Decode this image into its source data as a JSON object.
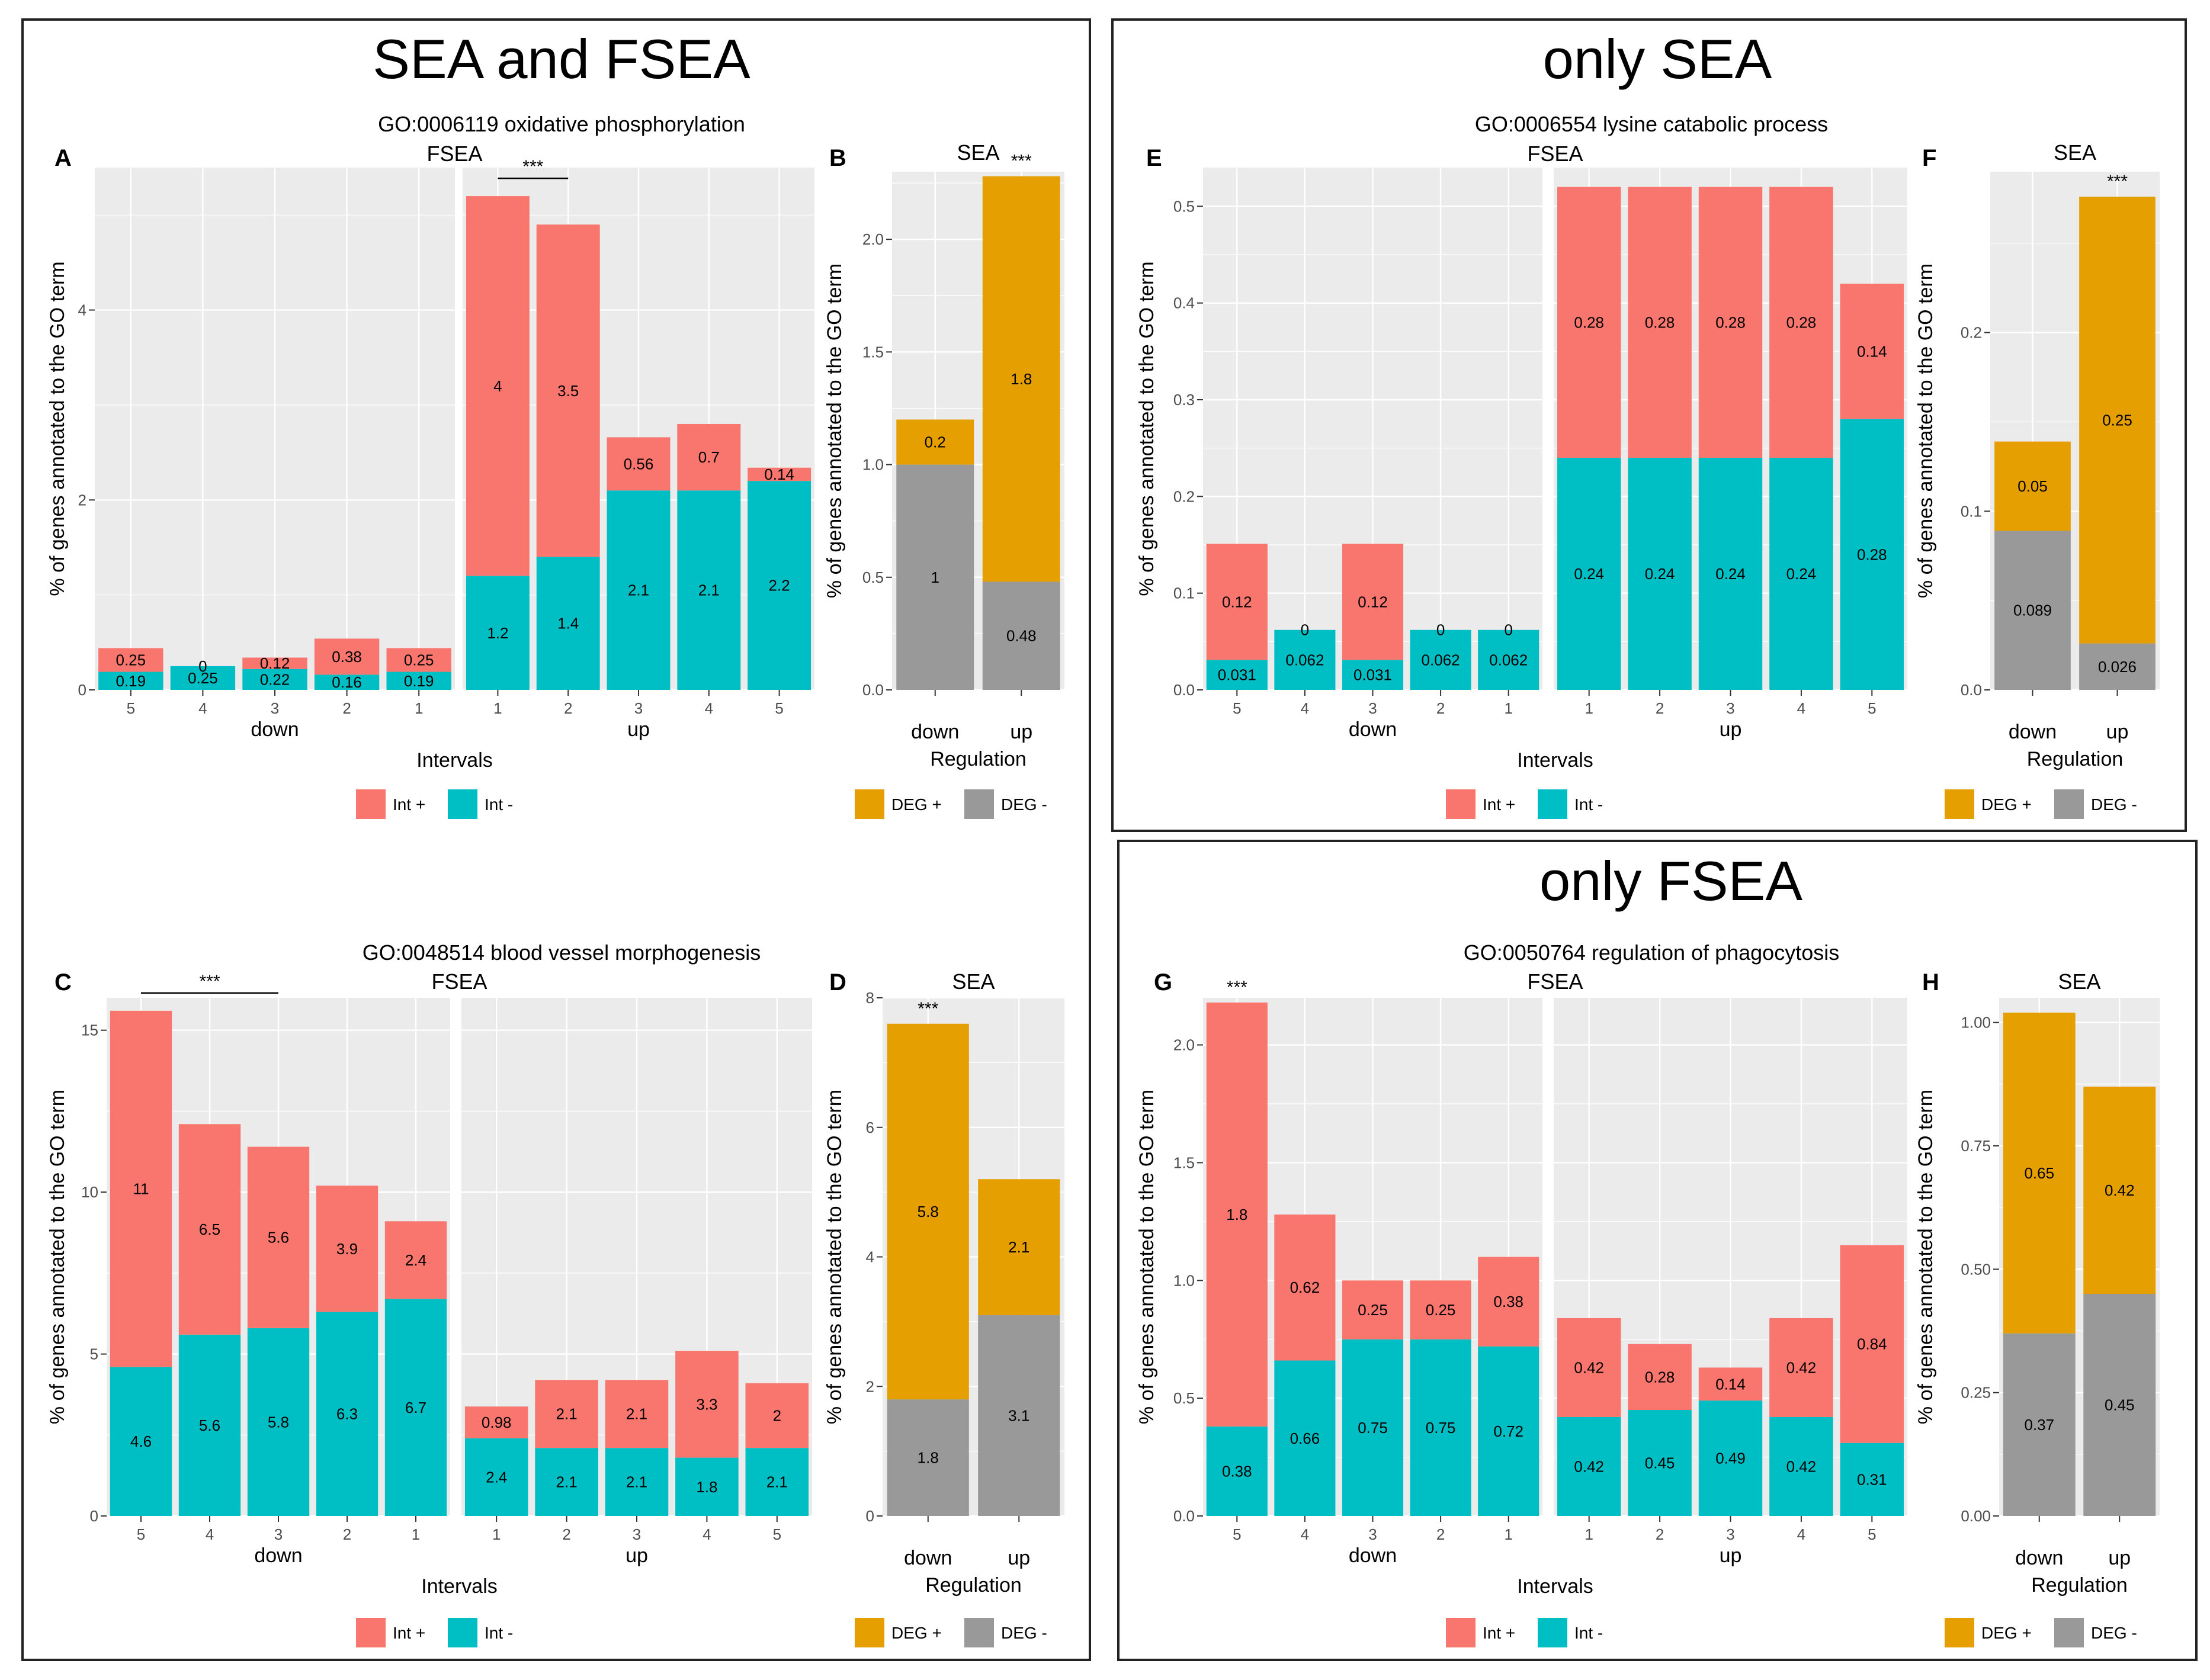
{
  "colors": {
    "int_plus": "#F8766D",
    "int_minus": "#00BFC4",
    "deg_plus": "#E69F00",
    "deg_minus": "#999999",
    "panel_bg": "#EBEBEB",
    "grid": "#FFFFFF"
  },
  "sections": [
    {
      "title": "SEA and FSEA"
    },
    {
      "title": "only SEA"
    },
    {
      "title": "only FSEA"
    }
  ],
  "chart_data": [
    {
      "id": "A",
      "type": "bar",
      "stacked": true,
      "go_title": "GO:0006119 oxidative phosphorylation",
      "subtitle": "FSEA",
      "ylabel": "% of genes annotated to the GO term",
      "xlabel": "Intervals",
      "ylim": [
        0,
        5.5
      ],
      "yticks": [
        0,
        2,
        4
      ],
      "ytick_labels": [
        "0",
        "2",
        "4"
      ],
      "facets": [
        {
          "name": "down",
          "categories": [
            "5",
            "4",
            "3",
            "2",
            "1"
          ]
        },
        {
          "name": "up",
          "categories": [
            "1",
            "2",
            "3",
            "4",
            "5"
          ]
        }
      ],
      "series": [
        {
          "name": "Int +",
          "values": [
            [
              0.25,
              0,
              0.12,
              0.38,
              0.25
            ],
            [
              4,
              3.5,
              0.56,
              0.7,
              0.14
            ]
          ],
          "labels": [
            [
              "0.25",
              "0",
              "0.12",
              "0.38",
              "0.25"
            ],
            [
              "4",
              "3.5",
              "0.56",
              "0.7",
              "0.14"
            ]
          ]
        },
        {
          "name": "Int -",
          "values": [
            [
              0.19,
              0.25,
              0.22,
              0.16,
              0.19
            ],
            [
              1.2,
              1.4,
              2.1,
              2.1,
              2.2
            ]
          ],
          "labels": [
            [
              "0.19",
              "0.25",
              "0.22",
              "0.16",
              "0.19"
            ],
            [
              "1.2",
              "1.4",
              "2.1",
              "2.1",
              "2.2"
            ]
          ]
        }
      ],
      "significance": {
        "label": "***",
        "facet": 1,
        "from": 0,
        "to": 1
      },
      "legend": [
        "Int +",
        "Int -"
      ]
    },
    {
      "id": "B",
      "type": "bar",
      "stacked": true,
      "subtitle": "SEA",
      "ylabel": "% of genes annotated to the GO term",
      "xlabel": "Regulation",
      "ylim": [
        0,
        2.3
      ],
      "yticks": [
        0,
        0.5,
        1,
        1.5,
        2
      ],
      "ytick_labels": [
        "0.0",
        "0.5",
        "1.0",
        "1.5",
        "2.0"
      ],
      "categories": [
        "down",
        "up"
      ],
      "series": [
        {
          "name": "DEG +",
          "values": [
            0.2,
            1.8
          ],
          "labels": [
            "0.2",
            "1.8"
          ]
        },
        {
          "name": "DEG -",
          "values": [
            1,
            0.48
          ],
          "labels": [
            "1",
            "0.48"
          ]
        }
      ],
      "significance": {
        "label": "***",
        "bar": 1
      },
      "legend": [
        "DEG +",
        "DEG -"
      ]
    },
    {
      "id": "C",
      "type": "bar",
      "stacked": true,
      "go_title": "GO:0048514 blood vessel morphogenesis",
      "subtitle": "FSEA",
      "ylabel": "% of genes annotated to the GO term",
      "xlabel": "Intervals",
      "ylim": [
        0,
        16
      ],
      "yticks": [
        0,
        5,
        10,
        15
      ],
      "ytick_labels": [
        "0",
        "5",
        "10",
        "15"
      ],
      "facets": [
        {
          "name": "down",
          "categories": [
            "5",
            "4",
            "3",
            "2",
            "1"
          ]
        },
        {
          "name": "up",
          "categories": [
            "1",
            "2",
            "3",
            "4",
            "5"
          ]
        }
      ],
      "series": [
        {
          "name": "Int +",
          "values": [
            [
              11,
              6.5,
              5.6,
              3.9,
              2.4
            ],
            [
              0.98,
              2.1,
              2.1,
              3.3,
              2
            ]
          ],
          "labels": [
            [
              "11",
              "6.5",
              "5.6",
              "3.9",
              "2.4"
            ],
            [
              "0.98",
              "2.1",
              "2.1",
              "3.3",
              "2"
            ]
          ]
        },
        {
          "name": "Int -",
          "values": [
            [
              4.6,
              5.6,
              5.8,
              6.3,
              6.7
            ],
            [
              2.4,
              2.1,
              2.1,
              1.8,
              2.1
            ]
          ],
          "labels": [
            [
              "4.6",
              "5.6",
              "5.8",
              "6.3",
              "6.7"
            ],
            [
              "2.4",
              "2.1",
              "2.1",
              "1.8",
              "2.1"
            ]
          ]
        }
      ],
      "significance": {
        "label": "***",
        "facet": 0,
        "from": 0,
        "to": 2
      },
      "legend": [
        "Int +",
        "Int -"
      ]
    },
    {
      "id": "D",
      "type": "bar",
      "stacked": true,
      "subtitle": "SEA",
      "ylabel": "% of genes annotated to the GO term",
      "xlabel": "Regulation",
      "ylim": [
        0,
        8
      ],
      "yticks": [
        0,
        2,
        4,
        6,
        8
      ],
      "ytick_labels": [
        "0",
        "2",
        "4",
        "6",
        "8"
      ],
      "categories": [
        "down",
        "up"
      ],
      "series": [
        {
          "name": "DEG +",
          "values": [
            5.8,
            2.1
          ],
          "labels": [
            "5.8",
            "2.1"
          ]
        },
        {
          "name": "DEG -",
          "values": [
            1.8,
            3.1
          ],
          "labels": [
            "1.8",
            "3.1"
          ]
        }
      ],
      "significance": {
        "label": "***",
        "bar": 0
      },
      "legend": [
        "DEG +",
        "DEG -"
      ]
    },
    {
      "id": "E",
      "type": "bar",
      "stacked": true,
      "go_title": "GO:0006554 lysine catabolic process",
      "subtitle": "FSEA",
      "ylabel": "% of genes annotated to the GO term",
      "xlabel": "Intervals",
      "ylim": [
        0,
        0.54
      ],
      "yticks": [
        0,
        0.1,
        0.2,
        0.3,
        0.4,
        0.5
      ],
      "ytick_labels": [
        "0.0",
        "0.1",
        "0.2",
        "0.3",
        "0.4",
        "0.5"
      ],
      "facets": [
        {
          "name": "down",
          "categories": [
            "5",
            "4",
            "3",
            "2",
            "1"
          ]
        },
        {
          "name": "up",
          "categories": [
            "1",
            "2",
            "3",
            "4",
            "5"
          ]
        }
      ],
      "series": [
        {
          "name": "Int +",
          "values": [
            [
              0.12,
              0,
              0.12,
              0,
              0
            ],
            [
              0.28,
              0.28,
              0.28,
              0.28,
              0.14
            ]
          ],
          "labels": [
            [
              "0.12",
              "0",
              "0.12",
              "0",
              "0"
            ],
            [
              "0.28",
              "0.28",
              "0.28",
              "0.28",
              "0.14"
            ]
          ]
        },
        {
          "name": "Int -",
          "values": [
            [
              0.031,
              0.062,
              0.031,
              0.062,
              0.062
            ],
            [
              0.24,
              0.24,
              0.24,
              0.24,
              0.28
            ]
          ],
          "labels": [
            [
              "0.031",
              "0.062",
              "0.031",
              "0.062",
              "0.062"
            ],
            [
              "0.24",
              "0.24",
              "0.24",
              "0.24",
              "0.28"
            ]
          ]
        }
      ],
      "legend": [
        "Int +",
        "Int -"
      ]
    },
    {
      "id": "F",
      "type": "bar",
      "stacked": true,
      "subtitle": "SEA",
      "ylabel": "% of genes annotated to the GO term",
      "xlabel": "Regulation",
      "ylim": [
        0,
        0.29
      ],
      "yticks": [
        0,
        0.1,
        0.2
      ],
      "ytick_labels": [
        "0.0",
        "0.1",
        "0.2"
      ],
      "categories": [
        "down",
        "up"
      ],
      "series": [
        {
          "name": "DEG +",
          "values": [
            0.05,
            0.25
          ],
          "labels": [
            "0.05",
            "0.25"
          ]
        },
        {
          "name": "DEG -",
          "values": [
            0.089,
            0.026
          ],
          "labels": [
            "0.089",
            "0.026"
          ]
        }
      ],
      "significance": {
        "label": "***",
        "bar": 1
      },
      "legend": [
        "DEG +",
        "DEG -"
      ]
    },
    {
      "id": "G",
      "type": "bar",
      "stacked": true,
      "go_title": "GO:0050764 regulation of phagocytosis",
      "subtitle": "FSEA",
      "ylabel": "% of genes annotated to the GO term",
      "xlabel": "Intervals",
      "ylim": [
        0,
        2.2
      ],
      "yticks": [
        0,
        0.5,
        1,
        1.5,
        2
      ],
      "ytick_labels": [
        "0.0",
        "0.5",
        "1.0",
        "1.5",
        "2.0"
      ],
      "facets": [
        {
          "name": "down",
          "categories": [
            "5",
            "4",
            "3",
            "2",
            "1"
          ]
        },
        {
          "name": "up",
          "categories": [
            "1",
            "2",
            "3",
            "4",
            "5"
          ]
        }
      ],
      "series": [
        {
          "name": "Int +",
          "values": [
            [
              1.8,
              0.62,
              0.25,
              0.25,
              0.38
            ],
            [
              0.42,
              0.28,
              0.14,
              0.42,
              0.84
            ]
          ],
          "labels": [
            [
              "1.8",
              "0.62",
              "0.25",
              "0.25",
              "0.38"
            ],
            [
              "0.42",
              "0.28",
              "0.14",
              "0.42",
              "0.84"
            ]
          ]
        },
        {
          "name": "Int -",
          "values": [
            [
              0.38,
              0.66,
              0.75,
              0.75,
              0.72
            ],
            [
              0.42,
              0.45,
              0.49,
              0.42,
              0.31
            ]
          ],
          "labels": [
            [
              "0.38",
              "0.66",
              "0.75",
              "0.75",
              "0.72"
            ],
            [
              "0.42",
              "0.45",
              "0.49",
              "0.42",
              "0.31"
            ]
          ]
        }
      ],
      "significance": {
        "label": "***",
        "facet": 0,
        "bar": 0
      },
      "legend": [
        "Int +",
        "Int -"
      ]
    },
    {
      "id": "H",
      "type": "bar",
      "stacked": true,
      "subtitle": "SEA",
      "ylabel": "% of genes annotated to the GO term",
      "xlabel": "Regulation",
      "ylim": [
        0,
        1.05
      ],
      "yticks": [
        0,
        0.25,
        0.5,
        0.75,
        1
      ],
      "ytick_labels": [
        "0.00",
        "0.25",
        "0.50",
        "0.75",
        "1.00"
      ],
      "categories": [
        "down",
        "up"
      ],
      "series": [
        {
          "name": "DEG +",
          "values": [
            0.65,
            0.42
          ],
          "labels": [
            "0.65",
            "0.42"
          ]
        },
        {
          "name": "DEG -",
          "values": [
            0.37,
            0.45
          ],
          "labels": [
            "0.37",
            "0.45"
          ]
        }
      ],
      "legend": [
        "DEG +",
        "DEG -"
      ]
    }
  ]
}
